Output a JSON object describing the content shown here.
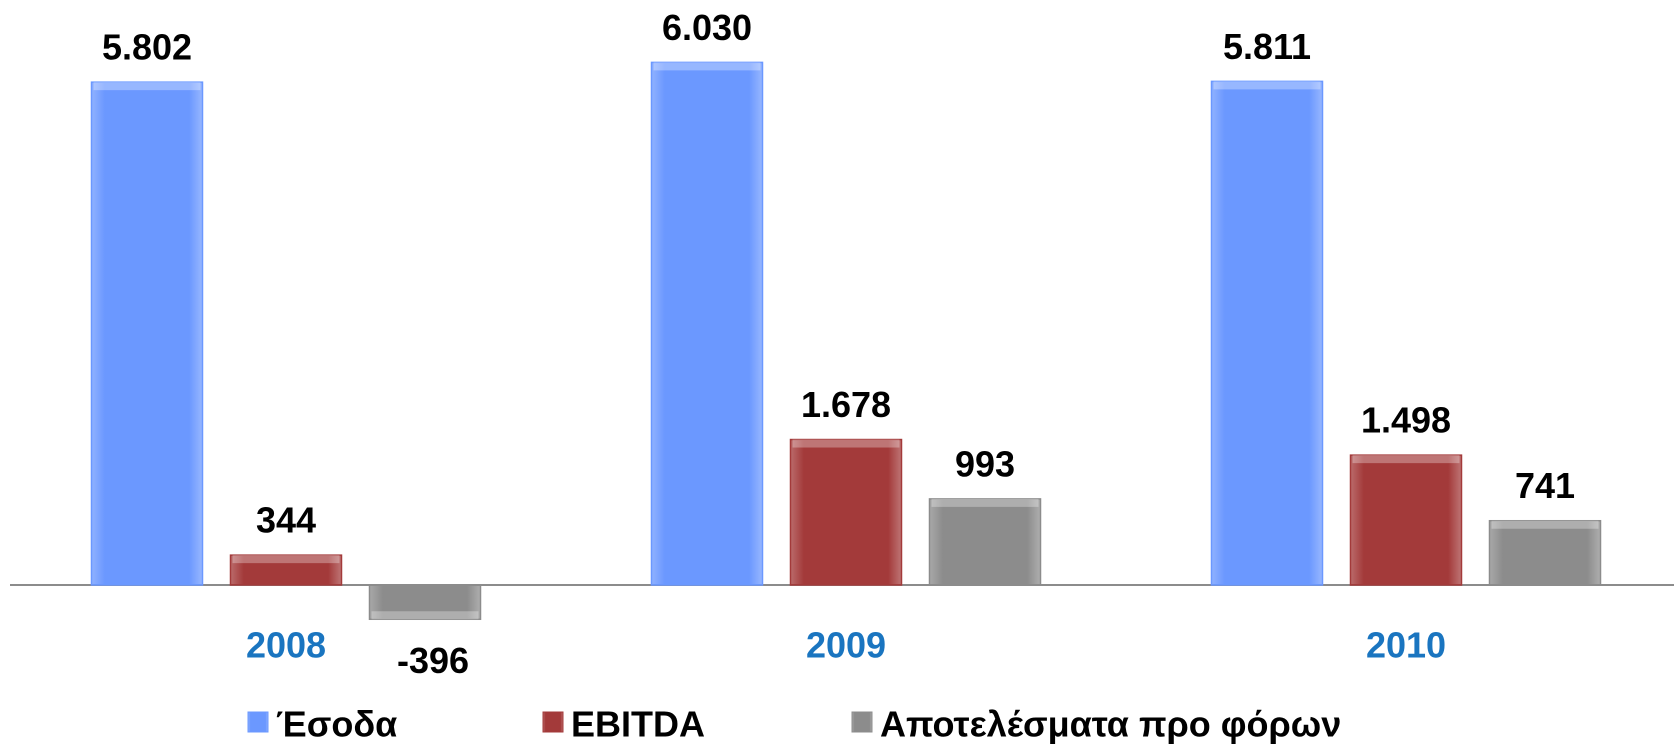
{
  "chart_data": {
    "type": "bar",
    "categories": [
      "2008",
      "2009",
      "2010"
    ],
    "series": [
      {
        "name": "Έσοδα",
        "color": "#6b98ff",
        "values": [
          5802,
          6030,
          5811
        ],
        "value_labels": [
          "5.802",
          "6.030",
          "5.811"
        ]
      },
      {
        "name": "EBITDA",
        "color": "#a33a3a",
        "values": [
          344,
          1678,
          1498
        ],
        "value_labels": [
          "344",
          "1.678",
          "1.498"
        ]
      },
      {
        "name": "Αποτελέσματα προ φόρων",
        "color": "#8c8c8c",
        "values": [
          -396,
          993,
          741
        ],
        "value_labels": [
          "-396",
          "993",
          "741"
        ]
      }
    ],
    "ylim": [
      -1870,
      6750
    ]
  }
}
